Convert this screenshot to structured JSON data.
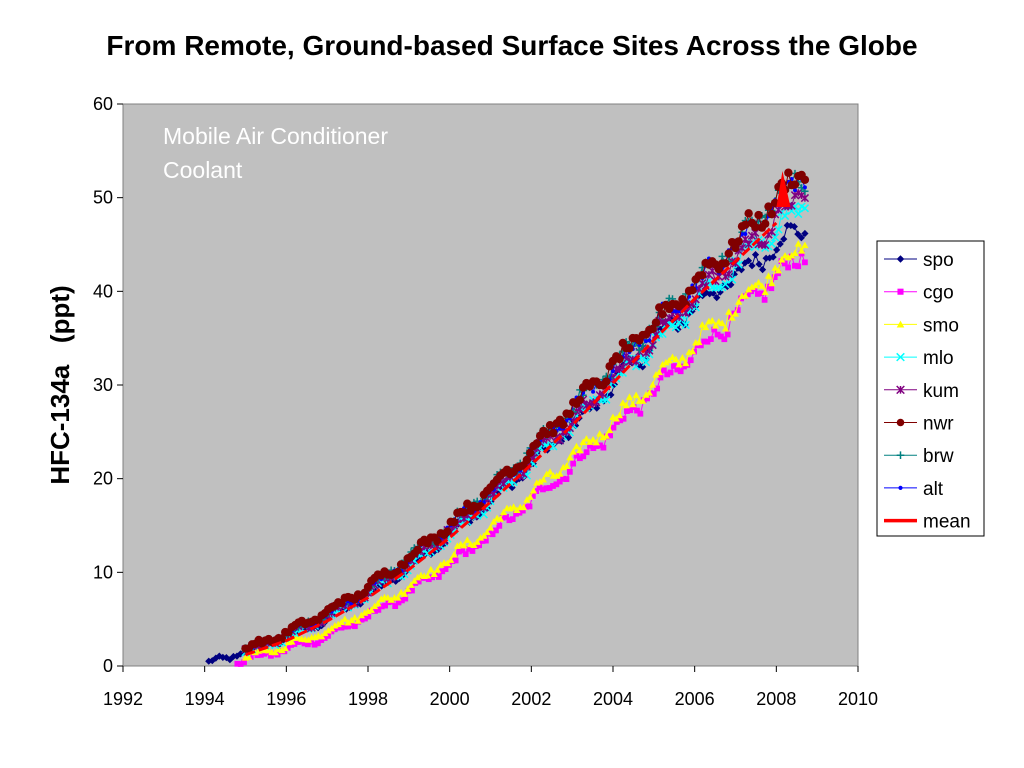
{
  "page": {
    "title": "From Remote, Ground-based Surface Sites Across the Globe"
  },
  "chart_data": {
    "type": "scatter",
    "title": "From Remote, Ground-based Surface Sites Across the Globe",
    "annotation": [
      "Mobile Air Conditioner",
      "Coolant"
    ],
    "xlabel": "",
    "ylabel": "HFC-134a   (ppt)",
    "xlim": [
      1992,
      2010
    ],
    "ylim": [
      0,
      60
    ],
    "xticks": [
      1992,
      1994,
      1996,
      1998,
      2000,
      2002,
      2004,
      2006,
      2008,
      2010
    ],
    "yticks": [
      0,
      10,
      20,
      30,
      40,
      50,
      60
    ],
    "grid": false,
    "plot_background": "#c0c0c0",
    "legend_position": "right",
    "series": [
      {
        "name": "spo",
        "color": "#000080",
        "marker": "diamond",
        "x": [
          1994.1,
          1995,
          1996,
          1997,
          1998,
          1999,
          2000,
          2001,
          2002,
          2003,
          2004,
          2005,
          2006,
          2007,
          2008,
          2008.7
        ],
        "y": [
          0.3,
          1.5,
          3.0,
          5.0,
          7.5,
          10.5,
          14.0,
          17.5,
          21.5,
          25.5,
          30.0,
          34.5,
          38.5,
          41.5,
          45.0,
          47.0
        ]
      },
      {
        "name": "cgo",
        "color": "#ff00ff",
        "marker": "square",
        "x": [
          1994.8,
          1995,
          1996,
          1997,
          1998,
          1999,
          2000,
          2001,
          2002,
          2003,
          2004,
          2005,
          2006,
          2007,
          2008,
          2008.7
        ],
        "y": [
          0.3,
          0.7,
          1.8,
          3.2,
          5.3,
          7.8,
          10.8,
          14.0,
          17.6,
          21.3,
          25.2,
          29.4,
          33.4,
          37.4,
          41.6,
          44.0
        ]
      },
      {
        "name": "smo",
        "color": "#ffff00",
        "marker": "triangle",
        "x": [
          1995,
          1996,
          1997,
          1998,
          1999,
          2000,
          2001,
          2002,
          2003,
          2004,
          2005,
          2006,
          2007,
          2008,
          2008.7
        ],
        "y": [
          0.9,
          2.2,
          3.8,
          5.9,
          8.5,
          11.5,
          14.8,
          18.4,
          22.2,
          26.2,
          30.4,
          34.4,
          38.4,
          42.6,
          45.0
        ]
      },
      {
        "name": "mlo",
        "color": "#00ffff",
        "marker": "x",
        "x": [
          1995,
          1996,
          1997,
          1998,
          1999,
          2000,
          2001,
          2002,
          2003,
          2004,
          2005,
          2006,
          2007,
          2008,
          2008.7
        ],
        "y": [
          1.5,
          3.0,
          5.2,
          7.7,
          10.6,
          14.0,
          17.6,
          21.6,
          25.7,
          30.1,
          34.5,
          38.7,
          42.6,
          46.8,
          49.5
        ]
      },
      {
        "name": "kum",
        "color": "#800080",
        "marker": "star",
        "x": [
          1995,
          1996,
          1997,
          1998,
          1999,
          2000,
          2001,
          2002,
          2003,
          2004,
          2005,
          2006,
          2007,
          2008,
          2008.7
        ],
        "y": [
          1.6,
          3.2,
          5.4,
          8.0,
          11.1,
          14.5,
          18.2,
          22.2,
          26.4,
          30.8,
          35.2,
          39.5,
          43.5,
          47.7,
          50.5
        ]
      },
      {
        "name": "nwr",
        "color": "#800000",
        "marker": "circle",
        "x": [
          1995,
          1996,
          1997,
          1998,
          1999,
          2000,
          2001,
          2002,
          2003,
          2004,
          2005,
          2006,
          2007,
          2008,
          2008.7
        ],
        "y": [
          1.8,
          3.5,
          5.8,
          8.4,
          11.6,
          15.1,
          18.9,
          23.1,
          27.6,
          32.1,
          36.5,
          40.9,
          45.2,
          49.9,
          53.0
        ]
      },
      {
        "name": "brw",
        "color": "#008080",
        "marker": "plus",
        "x": [
          1995,
          1996,
          1997,
          1998,
          1999,
          2000,
          2001,
          2002,
          2003,
          2004,
          2005,
          2006,
          2007,
          2008,
          2008.7
        ],
        "y": [
          1.7,
          3.4,
          5.7,
          8.3,
          11.5,
          15.0,
          18.9,
          23.0,
          27.5,
          32.0,
          36.5,
          40.8,
          45.1,
          49.8,
          52.5
        ]
      },
      {
        "name": "alt",
        "color": "#0000ff",
        "marker": "dot",
        "x": [
          1995,
          1996,
          1997,
          1998,
          1999,
          2000,
          2001,
          2002,
          2003,
          2004,
          2005,
          2006,
          2007,
          2008,
          2008.7
        ],
        "y": [
          1.7,
          3.4,
          5.6,
          8.2,
          11.4,
          14.9,
          18.7,
          22.8,
          27.3,
          31.8,
          36.4,
          40.7,
          45.0,
          49.7,
          52.3
        ]
      },
      {
        "name": "mean",
        "color": "#ff0000",
        "marker": "line",
        "x": [
          1995,
          1996,
          1997,
          1998,
          1999,
          2000,
          2001,
          2002,
          2003,
          2004,
          2005,
          2006,
          2007,
          2008
        ],
        "y": [
          1.2,
          2.7,
          4.8,
          7.3,
          10.3,
          13.7,
          17.5,
          21.5,
          25.7,
          30.2,
          34.8,
          39.2,
          43.2,
          47.3
        ]
      }
    ]
  }
}
